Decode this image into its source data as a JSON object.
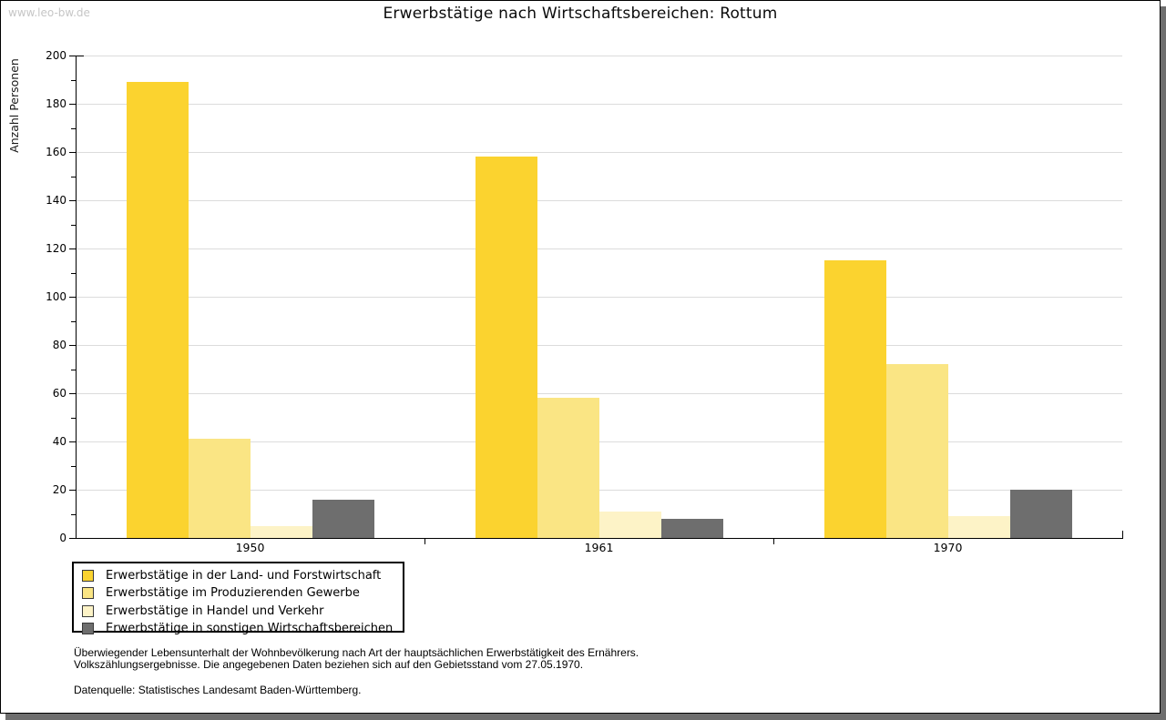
{
  "page": {
    "watermark": "www.leo-bw.de"
  },
  "chart_data": {
    "type": "bar",
    "title": "Erwerbstätige nach Wirtschaftsbereichen: Rottum",
    "xlabel": "",
    "ylabel": "Anzahl Personen",
    "categories": [
      "1950",
      "1961",
      "1970"
    ],
    "series": [
      {
        "name": "Erwerbstätige in der Land- und Forstwirtschaft",
        "color": "#FBD32F",
        "values": [
          189,
          158,
          115
        ]
      },
      {
        "name": "Erwerbstätige im Produzierenden Gewerbe",
        "color": "#FAE584",
        "values": [
          41,
          58,
          72
        ]
      },
      {
        "name": "Erwerbstätige in Handel und Verkehr",
        "color": "#FDF3C7",
        "values": [
          5,
          11,
          9
        ]
      },
      {
        "name": "Erwerbstätige in sonstigen Wirtschaftsbereichen",
        "color": "#6E6E6E",
        "values": [
          16,
          8,
          20
        ]
      }
    ],
    "ylim": [
      0,
      200
    ],
    "yticks": [
      0,
      20,
      40,
      60,
      80,
      100,
      120,
      140,
      160,
      180,
      200
    ],
    "ytick_step": 20,
    "y_minor_tick_step": 10,
    "grid": true,
    "legend_position": "bottom-left"
  },
  "footer": {
    "line1": "Überwiegender Lebensunterhalt der Wohnbevölkerung nach Art der hauptsächlichen Erwerbstätigkeit des Ernährers.",
    "line2": "Volkszählungsergebnisse. Die angegebenen Daten beziehen sich auf den Gebietsstand vom 27.05.1970.",
    "source": "Datenquelle: Statistisches Landesamt Baden-Württemberg."
  },
  "colors": {
    "grid": "#DCDCDC",
    "axis": "#000000",
    "watermark": "#C6C6C6",
    "frame_shadow": "#6E6E6E",
    "background": "#FFFFFF"
  }
}
